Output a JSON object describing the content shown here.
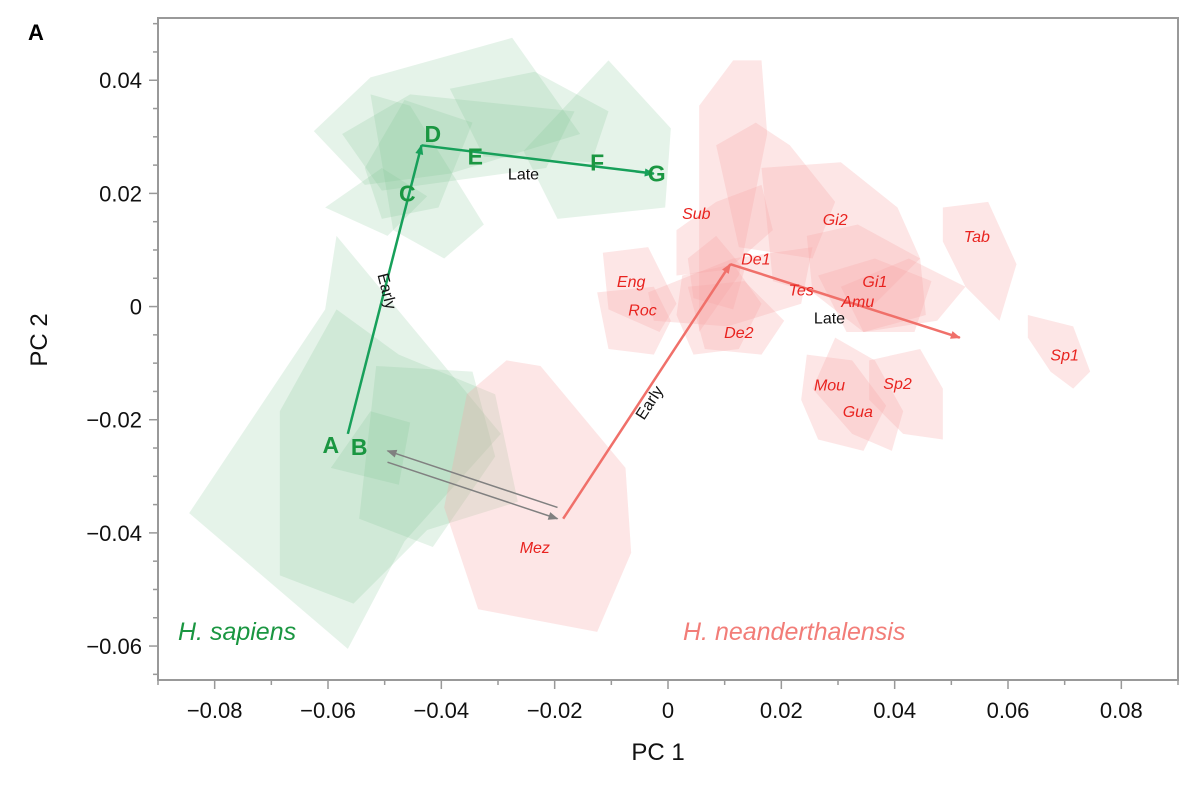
{
  "colors": {
    "sapiens": "#1a9641",
    "sapiens_line": "#17a05a",
    "sapiens_fill": "#7cc58f",
    "neanderthal": "#e8231f",
    "neanderthal_line": "#f0706a",
    "neanderthal_fill": "#f7a5a5",
    "species_neanderthal": "#f27d78",
    "gray_arrow": "#808080",
    "axis": "#999999"
  },
  "chart_data": {
    "type": "scatter",
    "panel_label": "A",
    "xlabel": "PC 1",
    "ylabel": "PC 2",
    "xlim": [
      -0.09,
      0.09
    ],
    "ylim": [
      -0.066,
      0.051
    ],
    "x_ticks": [
      -0.08,
      -0.06,
      -0.04,
      -0.02,
      0,
      0.02,
      0.04,
      0.06,
      0.08
    ],
    "x_tick_labels": [
      "−0.08",
      "−0.06",
      "−0.04",
      "−0.02",
      "0",
      "0.02",
      "0.04",
      "0.06",
      "0.08"
    ],
    "y_ticks": [
      0.04,
      0.02,
      0,
      -0.02,
      -0.04,
      -0.06
    ],
    "y_tick_labels": [
      "0.04",
      "0.02",
      "0",
      "−0.02",
      "−0.04",
      "−0.06"
    ],
    "grid": false,
    "species_labels": [
      {
        "text": "H. sapiens",
        "species": "sapiens"
      },
      {
        "text": "H. neanderthalensis",
        "species": "neanderthal"
      }
    ],
    "sapiens_stages": [
      {
        "label": "A",
        "x": -0.0595,
        "y": -0.0245
      },
      {
        "label": "B",
        "x": -0.0545,
        "y": -0.0248
      },
      {
        "label": "C",
        "x": -0.046,
        "y": 0.02
      },
      {
        "label": "D",
        "x": -0.0415,
        "y": 0.0305
      },
      {
        "label": "E",
        "x": -0.034,
        "y": 0.0265
      },
      {
        "label": "F",
        "x": -0.0125,
        "y": 0.0255
      },
      {
        "label": "G",
        "x": -0.002,
        "y": 0.0235
      }
    ],
    "neanderthal_sites": [
      {
        "label": "Sub",
        "x": 0.005,
        "y": 0.0165
      },
      {
        "label": "Gi2",
        "x": 0.0295,
        "y": 0.0155
      },
      {
        "label": "Tab",
        "x": 0.0545,
        "y": 0.0125
      },
      {
        "label": "De1",
        "x": 0.0155,
        "y": 0.0085
      },
      {
        "label": "Eng",
        "x": -0.0065,
        "y": 0.0045
      },
      {
        "label": "Gi1",
        "x": 0.0365,
        "y": 0.0045
      },
      {
        "label": "Tes",
        "x": 0.0235,
        "y": 0.003
      },
      {
        "label": "Amu",
        "x": 0.0335,
        "y": 0.001
      },
      {
        "label": "Roc",
        "x": -0.0045,
        "y": -0.0005
      },
      {
        "label": "De2",
        "x": 0.0125,
        "y": -0.0045
      },
      {
        "label": "Sp1",
        "x": 0.07,
        "y": -0.0085
      },
      {
        "label": "Sp2",
        "x": 0.0405,
        "y": -0.0135
      },
      {
        "label": "Mou",
        "x": 0.0285,
        "y": -0.0138
      },
      {
        "label": "Gua",
        "x": 0.0335,
        "y": -0.0185
      },
      {
        "label": "Mez",
        "x": -0.0235,
        "y": -0.0425
      }
    ],
    "trajectories": [
      {
        "species": "sapiens",
        "points": [
          [
            -0.0565,
            -0.0225
          ],
          [
            -0.0435,
            0.0285
          ],
          [
            -0.0025,
            0.0235
          ]
        ],
        "phase_labels": [
          {
            "text": "Early",
            "x": -0.0505,
            "y": 0.0025,
            "angle": 76
          },
          {
            "text": "Late",
            "x": -0.0255,
            "y": 0.0225,
            "angle": 0
          }
        ]
      },
      {
        "species": "neanderthal",
        "points": [
          [
            -0.0185,
            -0.0375
          ],
          [
            0.011,
            0.0075
          ],
          [
            0.0515,
            -0.0055
          ]
        ],
        "phase_labels": [
          {
            "text": "Early",
            "x": -0.0025,
            "y": -0.0175,
            "angle": -57
          },
          {
            "text": "Late",
            "x": 0.0285,
            "y": -0.003,
            "angle": 0
          }
        ]
      }
    ],
    "between_arrows": [
      {
        "from": [
          -0.0195,
          -0.0355
        ],
        "to": [
          -0.0495,
          -0.0255
        ]
      },
      {
        "from": [
          -0.0495,
          -0.0275
        ],
        "to": [
          -0.0195,
          -0.0375
        ]
      }
    ],
    "hulls": {
      "sapiens": [
        [
          [
            -0.0625,
            0.031
          ],
          [
            -0.0525,
            0.0405
          ],
          [
            -0.0275,
            0.0475
          ],
          [
            -0.0155,
            0.0305
          ],
          [
            -0.0385,
            0.0235
          ],
          [
            -0.0535,
            0.0215
          ]
        ],
        [
          [
            -0.0575,
            0.0305
          ],
          [
            -0.0455,
            0.0375
          ],
          [
            -0.0165,
            0.0345
          ],
          [
            -0.0215,
            0.0245
          ],
          [
            -0.0505,
            0.0205
          ]
        ],
        [
          [
            -0.0535,
            0.0245
          ],
          [
            -0.0465,
            0.0365
          ],
          [
            -0.0345,
            0.0325
          ],
          [
            -0.0405,
            0.0175
          ],
          [
            -0.0505,
            0.0155
          ]
        ],
        [
          [
            -0.0385,
            0.0385
          ],
          [
            -0.0235,
            0.0415
          ],
          [
            -0.0105,
            0.0345
          ],
          [
            -0.0135,
            0.0255
          ],
          [
            -0.0325,
            0.0265
          ]
        ],
        [
          [
            -0.0255,
            0.0275
          ],
          [
            -0.0105,
            0.0435
          ],
          [
            0.0005,
            0.0315
          ],
          [
            -0.0005,
            0.0175
          ],
          [
            -0.0195,
            0.0155
          ]
        ],
        [
          [
            -0.0525,
            0.0375
          ],
          [
            -0.0455,
            0.0355
          ],
          [
            -0.0325,
            0.0145
          ],
          [
            -0.0395,
            0.0085
          ],
          [
            -0.0485,
            0.0135
          ]
        ],
        [
          [
            -0.0845,
            -0.0365
          ],
          [
            -0.0605,
            -0.0005
          ],
          [
            -0.0585,
            0.0125
          ],
          [
            -0.0295,
            -0.0225
          ],
          [
            -0.0465,
            -0.0415
          ],
          [
            -0.0565,
            -0.0605
          ]
        ],
        [
          [
            -0.0685,
            -0.0475
          ],
          [
            -0.0555,
            -0.0525
          ],
          [
            -0.0425,
            -0.0395
          ],
          [
            -0.0265,
            -0.0345
          ],
          [
            -0.0305,
            -0.0155
          ],
          [
            -0.0475,
            -0.0085
          ],
          [
            -0.0585,
            -0.0005
          ],
          [
            -0.0685,
            -0.0185
          ]
        ],
        [
          [
            -0.0545,
            -0.0375
          ],
          [
            -0.0415,
            -0.0425
          ],
          [
            -0.0305,
            -0.0265
          ],
          [
            -0.0345,
            -0.0115
          ],
          [
            -0.0515,
            -0.0105
          ]
        ],
        [
          [
            -0.0595,
            -0.0285
          ],
          [
            -0.0525,
            -0.0185
          ],
          [
            -0.0455,
            -0.0205
          ],
          [
            -0.0475,
            -0.0315
          ]
        ],
        [
          [
            -0.0605,
            0.0175
          ],
          [
            -0.0505,
            0.0245
          ],
          [
            -0.0425,
            0.0195
          ],
          [
            -0.0495,
            0.0125
          ]
        ]
      ],
      "neanderthal": [
        [
          [
            -0.0395,
            -0.0355
          ],
          [
            -0.0355,
            -0.0155
          ],
          [
            -0.0285,
            -0.0095
          ],
          [
            -0.0225,
            -0.0105
          ],
          [
            -0.0075,
            -0.0285
          ],
          [
            -0.0065,
            -0.0435
          ],
          [
            -0.0125,
            -0.0575
          ],
          [
            -0.0335,
            -0.0535
          ]
        ],
        [
          [
            0.0055,
            0.0195
          ],
          [
            0.0055,
            0.0355
          ],
          [
            0.0115,
            0.0435
          ],
          [
            0.0165,
            0.0435
          ],
          [
            0.0175,
            0.0305
          ],
          [
            0.0125,
            0.0055
          ],
          [
            0.0055,
            -0.0045
          ]
        ],
        [
          [
            0.0015,
            0.0135
          ],
          [
            0.0085,
            0.0185
          ],
          [
            0.0165,
            0.0215
          ],
          [
            0.0185,
            0.0135
          ],
          [
            0.0105,
            0.0065
          ],
          [
            0.0015,
            0.0055
          ]
        ],
        [
          [
            -0.0035,
            0.0025
          ],
          [
            0.0115,
            0.0085
          ],
          [
            0.0255,
            0.0105
          ],
          [
            0.0235,
            0.0005
          ],
          [
            0.0105,
            -0.0035
          ],
          [
            -0.0025,
            -0.0025
          ]
        ],
        [
          [
            0.0085,
            0.0285
          ],
          [
            0.0155,
            0.0325
          ],
          [
            0.0215,
            0.0285
          ],
          [
            0.0295,
            0.0185
          ],
          [
            0.0255,
            0.0085
          ],
          [
            0.0125,
            0.0105
          ]
        ],
        [
          [
            0.0165,
            0.0245
          ],
          [
            0.0305,
            0.0255
          ],
          [
            0.0405,
            0.0175
          ],
          [
            0.0445,
            0.0085
          ],
          [
            0.0355,
            -0.0005
          ],
          [
            0.0185,
            0.0045
          ]
        ],
        [
          [
            0.0245,
            0.0125
          ],
          [
            0.0335,
            0.0145
          ],
          [
            0.0445,
            0.0085
          ],
          [
            0.0455,
            -0.0015
          ],
          [
            0.0345,
            -0.0045
          ],
          [
            0.0255,
            0.0025
          ]
        ],
        [
          [
            0.0265,
            0.0055
          ],
          [
            0.0365,
            0.0085
          ],
          [
            0.0465,
            0.0045
          ],
          [
            0.0435,
            -0.0045
          ],
          [
            0.0315,
            -0.0045
          ]
        ],
        [
          [
            0.0305,
            0.0035
          ],
          [
            0.0425,
            0.0085
          ],
          [
            0.0525,
            0.0035
          ],
          [
            0.0475,
            -0.0025
          ],
          [
            0.0345,
            -0.0045
          ]
        ],
        [
          [
            0.0035,
            0.0085
          ],
          [
            0.0085,
            0.0125
          ],
          [
            0.0135,
            0.0065
          ],
          [
            0.0115,
            -0.0005
          ],
          [
            0.0045,
            0.0015
          ]
        ],
        [
          [
            0.0035,
            0.0035
          ],
          [
            0.0135,
            0.0045
          ],
          [
            0.0205,
            -0.0025
          ],
          [
            0.0165,
            -0.0085
          ],
          [
            0.0065,
            -0.0075
          ]
        ],
        [
          [
            -0.0115,
            0.0095
          ],
          [
            -0.0035,
            0.0105
          ],
          [
            0.0015,
            0.0005
          ],
          [
            -0.0015,
            -0.0045
          ],
          [
            -0.0105,
            -0.0005
          ]
        ],
        [
          [
            -0.0125,
            0.0025
          ],
          [
            -0.0025,
            0.0035
          ],
          [
            0.0005,
            -0.0025
          ],
          [
            -0.0025,
            -0.0085
          ],
          [
            -0.0105,
            -0.0075
          ]
        ],
        [
          [
            0.0025,
            0.0055
          ],
          [
            0.0115,
            0.0075
          ],
          [
            0.0165,
            0.0005
          ],
          [
            0.0125,
            -0.0075
          ],
          [
            0.0045,
            -0.0085
          ],
          [
            0.0015,
            -0.0015
          ]
        ],
        [
          [
            0.0295,
            -0.0055
          ],
          [
            0.0365,
            -0.0095
          ],
          [
            0.0415,
            -0.0185
          ],
          [
            0.0395,
            -0.0255
          ],
          [
            0.0325,
            -0.0225
          ],
          [
            0.0255,
            -0.0145
          ]
        ],
        [
          [
            0.0245,
            -0.0085
          ],
          [
            0.0325,
            -0.0095
          ],
          [
            0.0385,
            -0.0175
          ],
          [
            0.0345,
            -0.0255
          ],
          [
            0.0265,
            -0.0235
          ],
          [
            0.0235,
            -0.0165
          ]
        ],
        [
          [
            0.0355,
            -0.0095
          ],
          [
            0.0445,
            -0.0075
          ],
          [
            0.0485,
            -0.0145
          ],
          [
            0.0485,
            -0.0235
          ],
          [
            0.0415,
            -0.0225
          ],
          [
            0.0355,
            -0.0165
          ]
        ],
        [
          [
            0.0485,
            0.0175
          ],
          [
            0.0565,
            0.0185
          ],
          [
            0.0615,
            0.0075
          ],
          [
            0.0585,
            -0.0025
          ],
          [
            0.0525,
            0.0035
          ],
          [
            0.0485,
            0.0115
          ]
        ],
        [
          [
            0.0635,
            -0.0015
          ],
          [
            0.0715,
            -0.0035
          ],
          [
            0.0745,
            -0.0115
          ],
          [
            0.0715,
            -0.0145
          ],
          [
            0.0675,
            -0.0115
          ],
          [
            0.0635,
            -0.0055
          ]
        ]
      ]
    }
  }
}
